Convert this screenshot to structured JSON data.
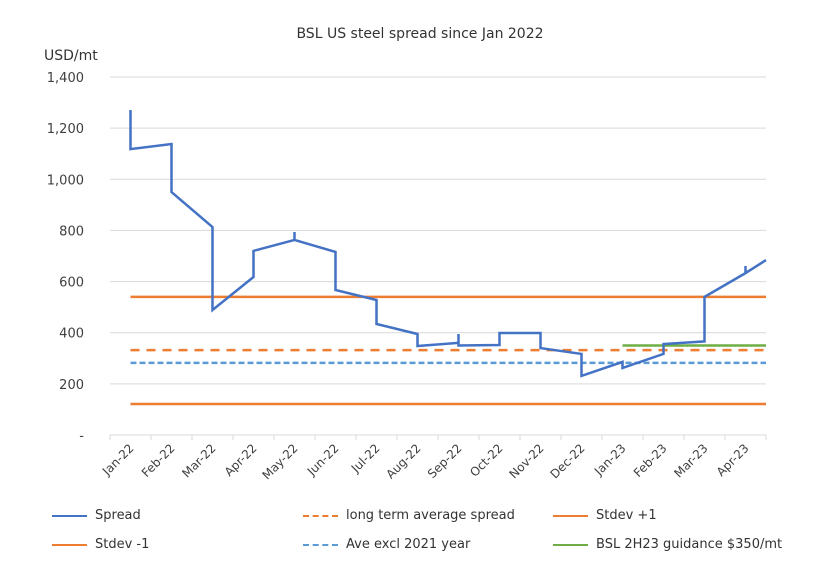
{
  "chart_data": {
    "type": "line",
    "title": "BSL US steel spread since Jan 2022",
    "ylabel": "USD/mt",
    "xlabel": "",
    "ylim": [
      0,
      1400
    ],
    "y_ticks": [
      {
        "value": 0,
        "label": "-"
      },
      {
        "value": 200,
        "label": "200"
      },
      {
        "value": 400,
        "label": "400"
      },
      {
        "value": 600,
        "label": "600"
      },
      {
        "value": 800,
        "label": "800"
      },
      {
        "value": 1000,
        "label": "1,000"
      },
      {
        "value": 1200,
        "label": "1,200"
      },
      {
        "value": 1400,
        "label": "1,400"
      }
    ],
    "categories": [
      "Jan-22",
      "Feb-22",
      "Mar-22",
      "Apr-22",
      "May-22",
      "Jun-22",
      "Jul-22",
      "Aug-22",
      "Sep-22",
      "Oct-22",
      "Nov-22",
      "Dec-22",
      "Jan-23",
      "Feb-23",
      "Mar-23",
      "Apr-23"
    ],
    "grid": true,
    "legend_position": "bottom",
    "x_unit_note": "x is month index from start of Jan-22 (0..16)",
    "series": [
      {
        "name": "Spread",
        "color": "#4472C4",
        "style": "solid",
        "points": [
          [
            0.5,
            1271
          ],
          [
            0.5,
            1118
          ],
          [
            1.5,
            1138
          ],
          [
            1.5,
            950
          ],
          [
            2.5,
            813
          ],
          [
            2.5,
            489
          ],
          [
            3.5,
            618
          ],
          [
            3.5,
            720
          ],
          [
            4.5,
            763
          ],
          [
            4.5,
            794
          ],
          [
            4.5,
            763
          ],
          [
            5.5,
            716
          ],
          [
            5.5,
            567
          ],
          [
            6.5,
            528
          ],
          [
            6.5,
            434
          ],
          [
            7.5,
            395
          ],
          [
            7.5,
            348
          ],
          [
            8.5,
            360
          ],
          [
            8.5,
            395
          ],
          [
            8.5,
            350
          ],
          [
            9.5,
            352
          ],
          [
            9.5,
            399
          ],
          [
            10.5,
            399
          ],
          [
            10.5,
            340
          ],
          [
            11.5,
            317
          ],
          [
            11.5,
            231
          ],
          [
            12.5,
            286
          ],
          [
            12.5,
            262
          ],
          [
            13.5,
            317
          ],
          [
            13.5,
            356
          ],
          [
            14.5,
            366
          ],
          [
            14.5,
            540
          ],
          [
            15.5,
            633
          ],
          [
            15.5,
            661
          ],
          [
            15.5,
            633
          ],
          [
            16,
            684
          ]
        ]
      },
      {
        "name": "long term average spread",
        "color": "#ED7D31",
        "style": "dashed",
        "value": 332,
        "x_start": 0.5,
        "x_end": 16
      },
      {
        "name": "Stdev +1",
        "color": "#ED7D31",
        "style": "solid",
        "value": 540,
        "x_start": 0.5,
        "x_end": 16
      },
      {
        "name": "Stdev -1",
        "color": "#ED7D31",
        "style": "solid",
        "value": 121,
        "x_start": 0.5,
        "x_end": 16
      },
      {
        "name": "Ave excl 2021 year",
        "color": "#5B9BD5",
        "style": "dotted",
        "value": 282,
        "x_start": 0.5,
        "x_end": 16
      },
      {
        "name": "BSL 2H23 guidance $350/mt",
        "color": "#70AD47",
        "style": "solid",
        "value": 350,
        "x_start": 12.5,
        "x_end": 16
      }
    ],
    "legend": [
      {
        "label": "Spread",
        "color": "#4472C4",
        "style": "solid"
      },
      {
        "label": "long term average spread",
        "color": "#ED7D31",
        "style": "dashed"
      },
      {
        "label": "Stdev +1",
        "color": "#ED7D31",
        "style": "solid"
      },
      {
        "label": "Stdev -1",
        "color": "#ED7D31",
        "style": "solid"
      },
      {
        "label": "Ave excl 2021 year",
        "color": "#5B9BD5",
        "style": "dotted"
      },
      {
        "label": "BSL 2H23 guidance $350/mt",
        "color": "#70AD47",
        "style": "solid"
      }
    ]
  }
}
